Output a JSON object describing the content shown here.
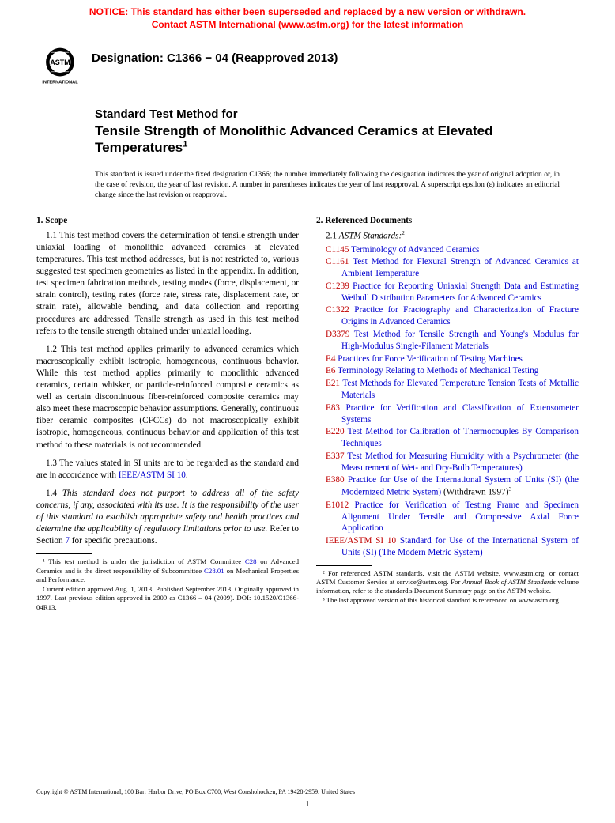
{
  "notice": {
    "line1": "NOTICE: This standard has either been superseded and replaced by a new version or withdrawn.",
    "line2": "Contact ASTM International (www.astm.org) for the latest information"
  },
  "logo_label": "ASTM INTERNATIONAL",
  "designation": "Designation: C1366 − 04 (Reapproved 2013)",
  "title": {
    "lead": "Standard Test Method for",
    "main": "Tensile Strength of Monolithic Advanced Ceramics at Elevated Temperatures",
    "sup": "1"
  },
  "issued_note": "This standard is issued under the fixed designation C1366; the number immediately following the designation indicates the year of original adoption or, in the case of revision, the year of last revision. A number in parentheses indicates the year of last reapproval. A superscript epsilon (ε) indicates an editorial change since the last revision or reapproval.",
  "scope": {
    "head": "1. Scope",
    "p1": "1.1 This test method covers the determination of tensile strength under uniaxial loading of monolithic advanced ceramics at elevated temperatures. This test method addresses, but is not restricted to, various suggested test specimen geometries as listed in the appendix. In addition, test specimen fabrication methods, testing modes (force, displacement, or strain control), testing rates (force rate, stress rate, displacement rate, or strain rate), allowable bending, and data collection and reporting procedures are addressed. Tensile strength as used in this test method refers to the tensile strength obtained under uniaxial loading.",
    "p2": "1.2 This test method applies primarily to advanced ceramics which macroscopically exhibit isotropic, homogeneous, continuous behavior. While this test method applies primarily to monolithic advanced ceramics, certain whisker, or particle-reinforced composite ceramics as well as certain discontinuous fiber-reinforced composite ceramics may also meet these macroscopic behavior assumptions. Generally, continuous fiber ceramic composites (CFCCs) do not macroscopically exhibit isotropic, homogeneous, continuous behavior and application of this test method to these materials is not recommended.",
    "p3_a": "1.3 The values stated in SI units are to be regarded as the standard and are in accordance with ",
    "p3_link": "IEEE/ASTM SI 10",
    "p3_b": ".",
    "p4_a": "1.4 ",
    "p4_i": "This standard does not purport to address all of the safety concerns, if any, associated with its use. It is the responsibility of the user of this standard to establish appropriate safety and health practices and determine the applicability of regulatory limitations prior to use.",
    "p4_b": " Refer to Section ",
    "p4_link": "7",
    "p4_c": " for specific precautions."
  },
  "refs": {
    "head": "2. Referenced Documents",
    "sub_a": "2.1 ",
    "sub_i": "ASTM Standards:",
    "sub_sup": "2",
    "items": [
      {
        "code": "C1145",
        "text": "Terminology of Advanced Ceramics"
      },
      {
        "code": "C1161",
        "text": "Test Method for Flexural Strength of Advanced Ceramics at Ambient Temperature"
      },
      {
        "code": "C1239",
        "text": "Practice for Reporting Uniaxial Strength Data and Estimating Weibull Distribution Parameters for Advanced Ceramics"
      },
      {
        "code": "C1322",
        "text": "Practice for Fractography and Characterization of Fracture Origins in Advanced Ceramics"
      },
      {
        "code": "D3379",
        "text": "Test Method for Tensile Strength and Young's Modulus for High-Modulus Single-Filament Materials"
      },
      {
        "code": "E4",
        "text": "Practices for Force Verification of Testing Machines"
      },
      {
        "code": "E6",
        "text": "Terminology Relating to Methods of Mechanical Testing"
      },
      {
        "code": "E21",
        "text": "Test Methods for Elevated Temperature Tension Tests of Metallic Materials"
      },
      {
        "code": "E83",
        "text": "Practice for Verification and Classification of Extensometer Systems"
      },
      {
        "code": "E220",
        "text": "Test Method for Calibration of Thermocouples By Comparison Techniques"
      },
      {
        "code": "E337",
        "text": "Test Method for Measuring Humidity with a Psychrometer (the Measurement of Wet- and Dry-Bulb Temperatures)"
      }
    ],
    "e380_code": "E380",
    "e380_text": "Practice for Use of the International System of Units (SI) (the Modernized Metric System)",
    "e380_withdrawn": " (Withdrawn 1997)",
    "e380_sup": "3",
    "e1012_code": "E1012",
    "e1012_text": "Practice for Verification of Testing Frame and Specimen Alignment Under Tensile and Compressive Axial Force Application",
    "ieee_code": "IEEE/ASTM SI 10",
    "ieee_text": "Standard for Use of the International System of Units (SI) (The Modern Metric System)"
  },
  "foot_left": {
    "f1_a": "¹ This test method is under the jurisdiction of ASTM Committee ",
    "f1_l1": "C28",
    "f1_b": " on Advanced Ceramics and is the direct responsibility of Subcommittee ",
    "f1_l2": "C28.01",
    "f1_c": " on Mechanical Properties and Performance.",
    "f2": "Current edition approved Aug. 1, 2013. Published September 2013. Originally approved in 1997. Last previous edition approved in 2009 as C1366 – 04 (2009). DOI: 10.1520/C1366-04R13."
  },
  "foot_right": {
    "f2_a": "² For referenced ASTM standards, visit the ASTM website, www.astm.org, or contact ASTM Customer Service at service@astm.org. For ",
    "f2_i": "Annual Book of ASTM Standards",
    "f2_b": " volume information, refer to the standard's Document Summary page on the ASTM website.",
    "f3": "³ The last approved version of this historical standard is referenced on www.astm.org."
  },
  "copyright": "Copyright © ASTM International, 100 Barr Harbor Drive, PO Box C700, West Conshohocken, PA 19428-2959. United States",
  "page": "1"
}
